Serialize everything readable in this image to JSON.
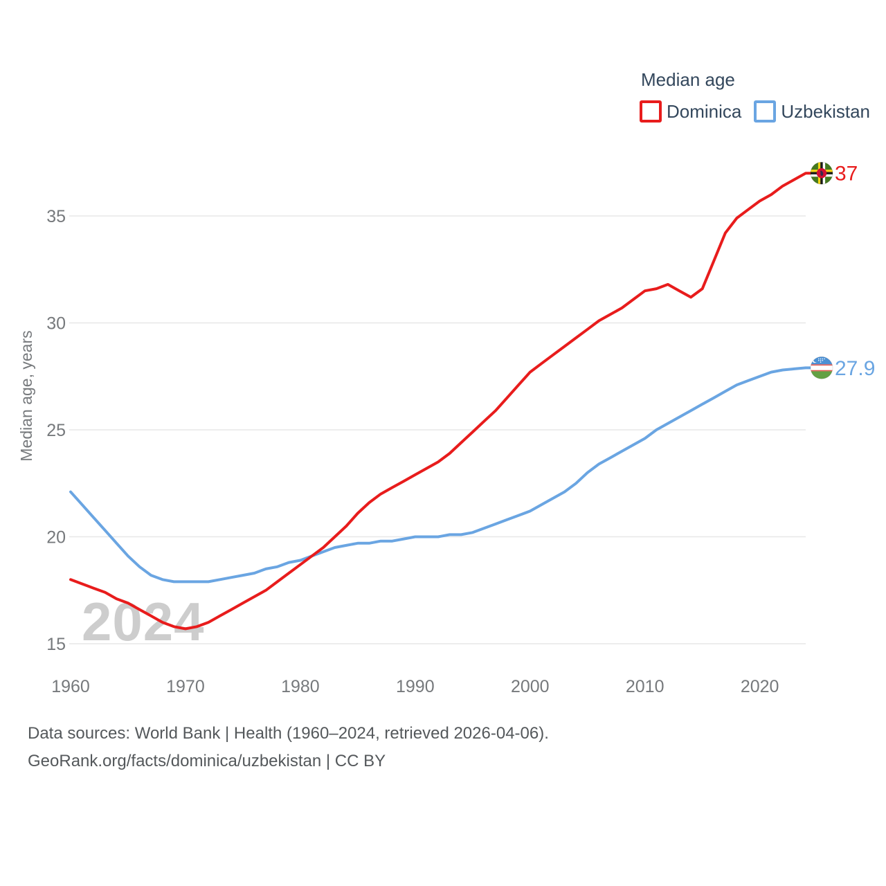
{
  "watermark": "2024",
  "legend": {
    "title": "Median age",
    "items": [
      {
        "label": "Dominica",
        "color": "#e81c1c"
      },
      {
        "label": "Uzbekistan",
        "color": "#6aa5e2"
      }
    ]
  },
  "footer": {
    "line1": "Data sources: World Bank | Health (1960–2024, retrieved 2026-04-06).",
    "line2": "GeoRank.org/facts/dominica/uzbekistan | CC BY"
  },
  "chart_data": {
    "type": "line",
    "title": "Median age",
    "xlabel": "",
    "ylabel": "Median age, years",
    "x_ticks": [
      1960,
      1970,
      1980,
      1990,
      2000,
      2010,
      2020
    ],
    "y_ticks": [
      15,
      20,
      25,
      30,
      35
    ],
    "ylim": [
      15,
      35
    ],
    "grid": "horizontal",
    "legend_position": "top-right",
    "years": [
      1960,
      1961,
      1962,
      1963,
      1964,
      1965,
      1966,
      1967,
      1968,
      1969,
      1970,
      1971,
      1972,
      1973,
      1974,
      1975,
      1976,
      1977,
      1978,
      1979,
      1980,
      1981,
      1982,
      1983,
      1984,
      1985,
      1986,
      1987,
      1988,
      1989,
      1990,
      1991,
      1992,
      1993,
      1994,
      1995,
      1996,
      1997,
      1998,
      1999,
      2000,
      2001,
      2002,
      2003,
      2004,
      2005,
      2006,
      2007,
      2008,
      2009,
      2010,
      2011,
      2012,
      2013,
      2014,
      2015,
      2016,
      2017,
      2018,
      2019,
      2020,
      2021,
      2022,
      2023,
      2024
    ],
    "series": [
      {
        "name": "Dominica",
        "color": "#e81c1c",
        "end_label": "37",
        "flag": "dominica-flag",
        "values": [
          18.0,
          17.8,
          17.6,
          17.4,
          17.1,
          16.9,
          16.6,
          16.3,
          16.0,
          15.8,
          15.7,
          15.8,
          16.0,
          16.3,
          16.6,
          16.9,
          17.2,
          17.5,
          17.9,
          18.3,
          18.7,
          19.1,
          19.5,
          20.0,
          20.5,
          21.1,
          21.6,
          22.0,
          22.3,
          22.6,
          22.9,
          23.2,
          23.5,
          23.9,
          24.4,
          24.9,
          25.4,
          25.9,
          26.5,
          27.1,
          27.7,
          28.1,
          28.5,
          28.9,
          29.3,
          29.7,
          30.1,
          30.4,
          30.7,
          31.1,
          31.5,
          31.6,
          31.8,
          31.5,
          31.2,
          31.6,
          32.9,
          34.2,
          34.9,
          35.3,
          35.7,
          36.0,
          36.4,
          36.7,
          37.0
        ]
      },
      {
        "name": "Uzbekistan",
        "color": "#6aa5e2",
        "end_label": "27.9",
        "flag": "uzbekistan-flag",
        "values": [
          22.1,
          21.5,
          20.9,
          20.3,
          19.7,
          19.1,
          18.6,
          18.2,
          18.0,
          17.9,
          17.9,
          17.9,
          17.9,
          18.0,
          18.1,
          18.2,
          18.3,
          18.5,
          18.6,
          18.8,
          18.9,
          19.1,
          19.3,
          19.5,
          19.6,
          19.7,
          19.7,
          19.8,
          19.8,
          19.9,
          20.0,
          20.0,
          20.0,
          20.1,
          20.1,
          20.2,
          20.4,
          20.6,
          20.8,
          21.0,
          21.2,
          21.5,
          21.8,
          22.1,
          22.5,
          23.0,
          23.4,
          23.7,
          24.0,
          24.3,
          24.6,
          25.0,
          25.3,
          25.6,
          25.9,
          26.2,
          26.5,
          26.8,
          27.1,
          27.3,
          27.5,
          27.7,
          27.8,
          27.85,
          27.9
        ]
      }
    ]
  }
}
